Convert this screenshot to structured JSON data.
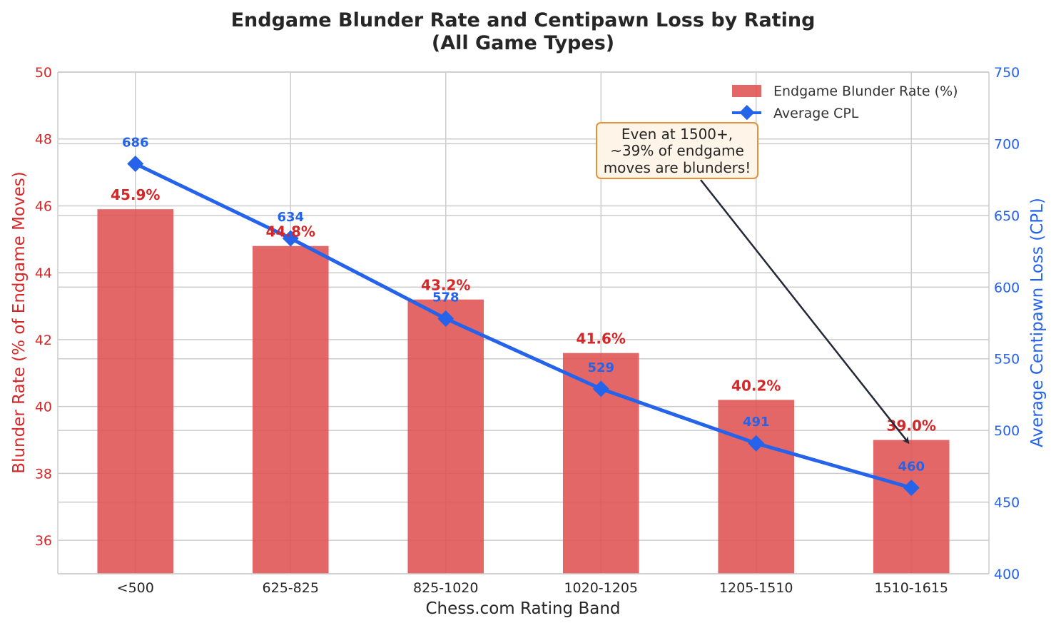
{
  "chart_data": {
    "type": "bar+line",
    "title_lines": [
      "Endgame Blunder Rate and Centipawn Loss by Rating",
      "(All Game Types)"
    ],
    "xlabel": "Chess.com Rating Band",
    "ylabel_left": "Blunder Rate (% of Endgame Moves)",
    "ylabel_right": "Average Centipawn Loss (CPL)",
    "categories": [
      "<500",
      "625-825",
      "825-1020",
      "1020-1205",
      "1205-1510",
      "1510-1615"
    ],
    "series": [
      {
        "name": "Endgame Blunder Rate (%)",
        "type": "bar",
        "axis": "left",
        "values": [
          45.9,
          44.8,
          43.2,
          41.6,
          40.2,
          39.0
        ],
        "labels": [
          "45.9%",
          "44.8%",
          "43.2%",
          "41.6%",
          "40.2%",
          "39.0%"
        ],
        "color": "#e05252"
      },
      {
        "name": "Average CPL",
        "type": "line",
        "axis": "right",
        "values": [
          686,
          634,
          578,
          529,
          491,
          460
        ],
        "labels": [
          "686",
          "634",
          "578",
          "529",
          "491",
          "460"
        ],
        "color": "#2563eb",
        "marker": "diamond"
      }
    ],
    "ylim_left": [
      35,
      50
    ],
    "yticks_left": [
      36,
      38,
      40,
      42,
      44,
      46,
      48,
      50
    ],
    "ylim_right": [
      400,
      750
    ],
    "yticks_right": [
      400,
      450,
      500,
      550,
      600,
      650,
      700,
      750
    ],
    "left_axis_color": "#d62728",
    "right_axis_color": "#2563eb",
    "grid": true,
    "legend_position": "upper right",
    "annotation": {
      "lines": [
        "Even at 1500+,",
        "~39% of endgame",
        "moves are blunders!"
      ],
      "arrow_target": {
        "category": "1510-1615",
        "value": 39.0
      },
      "box_color": "#fff4e8",
      "border_color": "#e69138",
      "arrow_color": "#222a3a"
    }
  }
}
